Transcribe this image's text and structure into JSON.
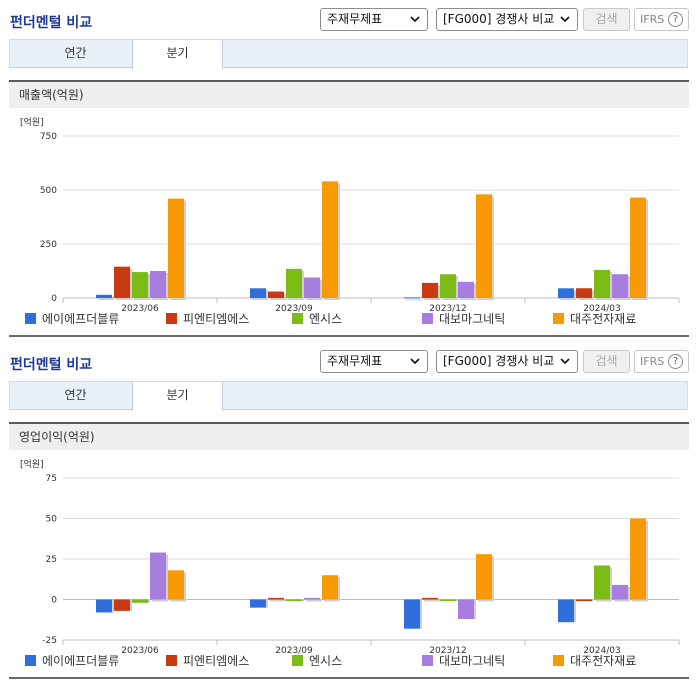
{
  "colors": [
    "#2f6fdc",
    "#c83a12",
    "#7dbb16",
    "#a77ee0",
    "#f79a05"
  ],
  "panels": [
    {
      "title": "펀더멘털 비교",
      "select1": "주재무제표",
      "select2": "[FG000] 경쟁사 비교",
      "search_label": "검색",
      "ifrs_label": "IFRS",
      "ifrs_help": "?",
      "tabs": [
        "연간",
        "분기"
      ],
      "subheading": "매출액(억원)",
      "legend": [
        "에이에프더블류",
        "피엔티엠에스",
        "엔시스",
        "대보마그네틱",
        "대주전자재료"
      ]
    },
    {
      "title": "펀더멘털 비교",
      "select1": "주재무제표",
      "select2": "[FG000] 경쟁사 비교",
      "search_label": "검색",
      "ifrs_label": "IFRS",
      "ifrs_help": "?",
      "tabs": [
        "연간",
        "분기"
      ],
      "subheading": "영업이익(억원)",
      "legend": [
        "에이에프더블류",
        "피엔티엠에스",
        "엔시스",
        "대보마그네틱",
        "대주전자재료"
      ]
    }
  ],
  "chart_data": [
    {
      "type": "bar",
      "unit_label": "[억원]",
      "categories": [
        "2023/06",
        "2023/09",
        "2023/12",
        "2024/03"
      ],
      "yticks": [
        0,
        250,
        500,
        750
      ],
      "ylim": [
        0,
        750
      ],
      "series": [
        {
          "name": "에이에프더블류",
          "values": [
            15,
            45,
            3,
            45
          ]
        },
        {
          "name": "피엔티엠에스",
          "values": [
            145,
            30,
            70,
            45
          ]
        },
        {
          "name": "엔시스",
          "values": [
            120,
            135,
            110,
            130
          ]
        },
        {
          "name": "대보마그네틱",
          "values": [
            125,
            95,
            75,
            110
          ]
        },
        {
          "name": "대주전자재료",
          "values": [
            460,
            540,
            480,
            465
          ]
        }
      ]
    },
    {
      "type": "bar",
      "unit_label": "[억원]",
      "categories": [
        "2023/06",
        "2023/09",
        "2023/12",
        "2024/03"
      ],
      "yticks": [
        -25,
        0,
        25,
        50,
        75
      ],
      "ylim": [
        -25,
        75
      ],
      "series": [
        {
          "name": "에이에프더블류",
          "values": [
            -8,
            -5,
            -18,
            -14
          ]
        },
        {
          "name": "피엔티엠에스",
          "values": [
            -7,
            1,
            1,
            -1
          ]
        },
        {
          "name": "엔시스",
          "values": [
            -2,
            -1,
            -1,
            21
          ]
        },
        {
          "name": "대보마그네틱",
          "values": [
            29,
            1,
            -12,
            9
          ]
        },
        {
          "name": "대주전자재료",
          "values": [
            18,
            15,
            28,
            50
          ]
        }
      ]
    }
  ]
}
